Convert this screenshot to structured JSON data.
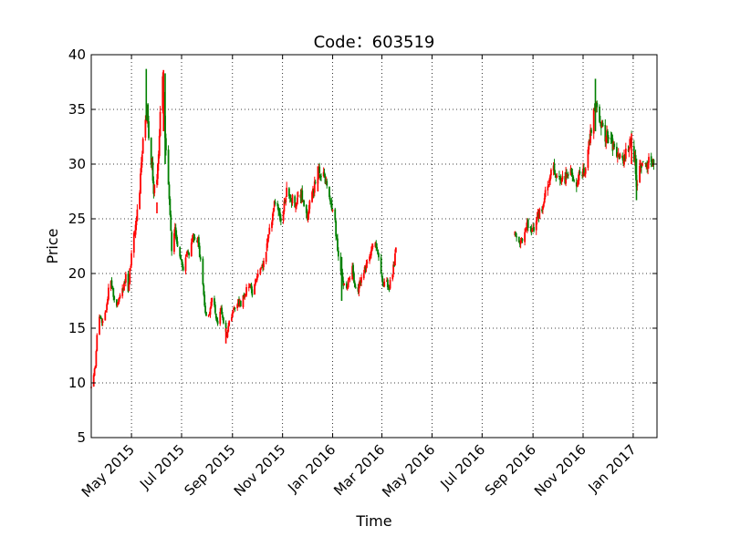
{
  "chart_data": {
    "type": "candlestick",
    "title": "Code：603519",
    "xlabel": "Time",
    "ylabel": "Price",
    "ylim": [
      5,
      40
    ],
    "xlim": [
      "2015-03-13",
      "2017-01-30"
    ],
    "grid": true,
    "up_color": "#ff0000",
    "down_color": "#008000",
    "y_ticks": [
      5,
      10,
      15,
      20,
      25,
      30,
      35,
      40
    ],
    "x_ticks": [
      {
        "date": "2015-05-01",
        "label": "May 2015"
      },
      {
        "date": "2015-07-01",
        "label": "Jul 2015"
      },
      {
        "date": "2015-09-01",
        "label": "Sep 2015"
      },
      {
        "date": "2015-11-01",
        "label": "Nov 2015"
      },
      {
        "date": "2016-01-01",
        "label": "Jan 2016"
      },
      {
        "date": "2016-03-01",
        "label": "Mar 2016"
      },
      {
        "date": "2016-05-01",
        "label": "May 2016"
      },
      {
        "date": "2016-07-01",
        "label": "Jul 2016"
      },
      {
        "date": "2016-09-01",
        "label": "Sep 2016"
      },
      {
        "date": "2016-11-01",
        "label": "Nov 2016"
      },
      {
        "date": "2017-01-01",
        "label": "Jan 2017"
      }
    ],
    "segments": [
      {
        "start": "2015-03-13",
        "close_path": [
          [
            "2015-03-13",
            9.5
          ],
          [
            "2015-03-18",
            11.7
          ],
          [
            "2015-03-20",
            14.5
          ],
          [
            "2015-03-23",
            15.8
          ],
          [
            "2015-03-27",
            15.6
          ],
          [
            "2015-04-01",
            17.0
          ],
          [
            "2015-04-03",
            18.8
          ],
          [
            "2015-04-06",
            19.6
          ],
          [
            "2015-04-09",
            18.0
          ],
          [
            "2015-04-13",
            17.2
          ],
          [
            "2015-04-17",
            18.0
          ],
          [
            "2015-04-21",
            18.5
          ],
          [
            "2015-04-24",
            19.8
          ],
          [
            "2015-04-27",
            18.5
          ],
          [
            "2015-04-30",
            21.0
          ],
          [
            "2015-05-04",
            23.5
          ],
          [
            "2015-05-07",
            25.0
          ],
          [
            "2015-05-11",
            27.5
          ],
          [
            "2015-05-14",
            31.0
          ],
          [
            "2015-05-18",
            34.5
          ],
          [
            "2015-05-20",
            35.0
          ],
          [
            "2015-05-22",
            32.0
          ],
          [
            "2015-05-26",
            30.0
          ],
          [
            "2015-05-28",
            27.5
          ],
          [
            "2015-06-01",
            29.0
          ],
          [
            "2015-06-03",
            31.0
          ],
          [
            "2015-06-05",
            35.0
          ],
          [
            "2015-06-08",
            37.5
          ],
          [
            "2015-06-10",
            34.0
          ],
          [
            "2015-06-12",
            31.0
          ],
          [
            "2015-06-15",
            28.0
          ],
          [
            "2015-06-17",
            25.5
          ],
          [
            "2015-06-19",
            22.0
          ],
          [
            "2015-06-23",
            24.5
          ],
          [
            "2015-06-26",
            22.5
          ],
          [
            "2015-06-30",
            21.0
          ],
          [
            "2015-07-03",
            20.5
          ],
          [
            "2015-07-07",
            22.0
          ],
          [
            "2015-07-10",
            21.5
          ],
          [
            "2015-07-14",
            23.0
          ],
          [
            "2015-07-17",
            22.8
          ],
          [
            "2015-07-21",
            23.3
          ],
          [
            "2015-07-24",
            21.0
          ],
          [
            "2015-07-28",
            18.0
          ],
          [
            "2015-07-31",
            16.0
          ],
          [
            "2015-08-04",
            16.5
          ],
          [
            "2015-08-07",
            18.0
          ],
          [
            "2015-08-11",
            16.5
          ],
          [
            "2015-08-14",
            15.5
          ],
          [
            "2015-08-18",
            16.8
          ],
          [
            "2015-08-21",
            15.5
          ],
          [
            "2015-08-25",
            14.2
          ],
          [
            "2015-08-28",
            15.5
          ],
          [
            "2015-09-02",
            16.5
          ],
          [
            "2015-09-08",
            17.5
          ],
          [
            "2015-09-11",
            17.3
          ],
          [
            "2015-09-15",
            18.0
          ],
          [
            "2015-09-18",
            18.5
          ],
          [
            "2015-09-22",
            19.0
          ],
          [
            "2015-09-25",
            18.3
          ],
          [
            "2015-09-30",
            19.5
          ],
          [
            "2015-10-09",
            20.8
          ],
          [
            "2015-10-13",
            22.5
          ],
          [
            "2015-10-16",
            24.0
          ],
          [
            "2015-10-20",
            25.5
          ],
          [
            "2015-10-23",
            26.5
          ],
          [
            "2015-10-27",
            26.0
          ],
          [
            "2015-10-30",
            24.5
          ],
          [
            "2015-11-03",
            26.5
          ],
          [
            "2015-11-06",
            27.5
          ],
          [
            "2015-11-10",
            26.5
          ],
          [
            "2015-11-13",
            27.0
          ],
          [
            "2015-11-17",
            26.0
          ],
          [
            "2015-11-20",
            27.5
          ],
          [
            "2015-11-24",
            27.2
          ],
          [
            "2015-11-27",
            26.0
          ],
          [
            "2015-12-01",
            25.5
          ],
          [
            "2015-12-04",
            26.5
          ],
          [
            "2015-12-08",
            27.5
          ],
          [
            "2015-12-11",
            28.5
          ],
          [
            "2015-12-15",
            29.3
          ],
          [
            "2015-12-18",
            28.5
          ],
          [
            "2015-12-22",
            29.0
          ],
          [
            "2015-12-25",
            28.0
          ],
          [
            "2015-12-29",
            27.0
          ],
          [
            "2016-01-04",
            24.5
          ],
          [
            "2016-01-07",
            22.0
          ],
          [
            "2016-01-11",
            20.5
          ],
          [
            "2016-01-14",
            19.0
          ],
          [
            "2016-01-18",
            18.5
          ],
          [
            "2016-01-21",
            19.5
          ],
          [
            "2016-01-25",
            20.5
          ],
          [
            "2016-01-28",
            19.0
          ],
          [
            "2016-02-01",
            18.5
          ],
          [
            "2016-02-04",
            19.5
          ],
          [
            "2016-02-15",
            21.5
          ],
          [
            "2016-02-18",
            22.5
          ],
          [
            "2016-02-22",
            22.8
          ],
          [
            "2016-02-25",
            21.5
          ],
          [
            "2016-02-29",
            20.0
          ],
          [
            "2016-03-03",
            19.0
          ],
          [
            "2016-03-07",
            19.2
          ],
          [
            "2016-03-10",
            18.8
          ],
          [
            "2016-03-14",
            20.0
          ],
          [
            "2016-03-17",
            21.5
          ],
          [
            "2016-03-18",
            22.0
          ]
        ]
      },
      {
        "start": "2016-08-10",
        "close_path": [
          [
            "2016-08-10",
            23.5
          ],
          [
            "2016-08-15",
            22.5
          ],
          [
            "2016-08-18",
            23.0
          ],
          [
            "2016-08-22",
            23.8
          ],
          [
            "2016-08-25",
            24.5
          ],
          [
            "2016-08-29",
            24.0
          ],
          [
            "2016-09-01",
            23.8
          ],
          [
            "2016-09-05",
            24.5
          ],
          [
            "2016-09-08",
            25.5
          ],
          [
            "2016-09-12",
            26.0
          ],
          [
            "2016-09-15",
            27.0
          ],
          [
            "2016-09-19",
            28.0
          ],
          [
            "2016-09-22",
            29.0
          ],
          [
            "2016-09-26",
            29.5
          ],
          [
            "2016-09-29",
            28.5
          ],
          [
            "2016-10-10",
            28.5
          ],
          [
            "2016-10-13",
            29.5
          ],
          [
            "2016-10-17",
            29.2
          ],
          [
            "2016-10-20",
            28.5
          ],
          [
            "2016-10-24",
            28.0
          ],
          [
            "2016-10-27",
            28.8
          ],
          [
            "2016-10-31",
            29.0
          ],
          [
            "2016-11-03",
            29.5
          ],
          [
            "2016-11-07",
            31.0
          ],
          [
            "2016-11-10",
            33.0
          ],
          [
            "2016-11-14",
            34.5
          ],
          [
            "2016-11-17",
            35.5
          ],
          [
            "2016-11-21",
            33.5
          ],
          [
            "2016-11-24",
            34.0
          ],
          [
            "2016-11-28",
            32.5
          ],
          [
            "2016-12-01",
            33.0
          ],
          [
            "2016-12-05",
            32.0
          ],
          [
            "2016-12-08",
            31.5
          ],
          [
            "2016-12-12",
            31.0
          ],
          [
            "2016-12-15",
            30.5
          ],
          [
            "2016-12-19",
            30.2
          ],
          [
            "2016-12-22",
            30.8
          ],
          [
            "2016-12-26",
            31.5
          ],
          [
            "2016-12-29",
            32.0
          ],
          [
            "2017-01-03",
            30.5
          ],
          [
            "2017-01-05",
            28.0
          ],
          [
            "2017-01-09",
            29.5
          ],
          [
            "2017-01-12",
            30.5
          ],
          [
            "2017-01-16",
            30.0
          ],
          [
            "2017-01-19",
            30.2
          ],
          [
            "2017-01-23",
            30.0
          ],
          [
            "2017-01-26",
            30.1
          ]
        ]
      }
    ],
    "spikes": [
      {
        "date": "2015-05-19",
        "high": 38.7,
        "low": 34.0
      },
      {
        "date": "2015-06-09",
        "high": 38.6,
        "low": 33.0
      },
      {
        "date": "2015-06-11",
        "high": 38.3,
        "low": 30.0
      },
      {
        "date": "2015-06-01",
        "high": 26.5,
        "low": 25.5
      },
      {
        "date": "2016-11-16",
        "high": 37.8,
        "low": 33.0
      },
      {
        "date": "2015-12-14",
        "high": 29.8,
        "low": 27.5
      },
      {
        "date": "2016-01-12",
        "high": 21.5,
        "low": 17.5
      },
      {
        "date": "2015-08-24",
        "high": 15.0,
        "low": 13.6
      },
      {
        "date": "2017-01-05",
        "high": 30.5,
        "low": 26.7
      },
      {
        "date": "2016-12-30",
        "high": 32.8,
        "low": 30.0
      }
    ]
  }
}
